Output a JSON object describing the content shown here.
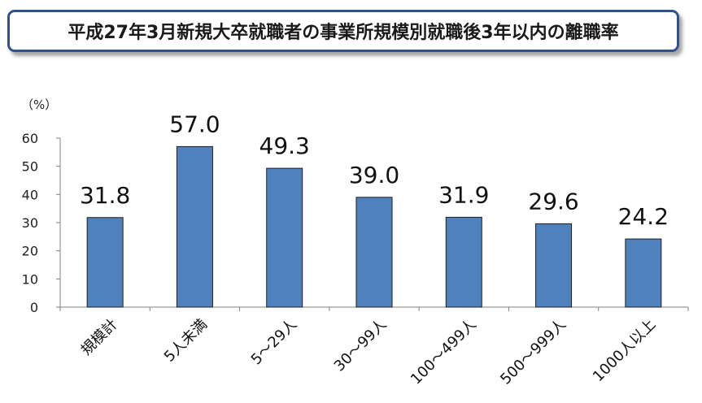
{
  "title": "平成27年3月新規大卒就職者の事業所規模別就職後3年以内の離職率",
  "unit_label": "（%）",
  "colors": {
    "bar": "#4f81bd",
    "bar_border": "#1f1f1f",
    "title_border": "#2f528f"
  },
  "chart_data": {
    "type": "bar",
    "categories": [
      "規模計",
      "5人未満",
      "5～29人",
      "30～99人",
      "100～499人",
      "500～999人",
      "1000人以上"
    ],
    "values": [
      31.8,
      57.0,
      49.3,
      39.0,
      31.9,
      29.6,
      24.2
    ],
    "value_labels": [
      "31.8",
      "57.0",
      "49.3",
      "39.0",
      "31.9",
      "29.6",
      "24.2"
    ],
    "ylim": [
      0,
      60
    ],
    "yticks": [
      0,
      10,
      20,
      30,
      40,
      50,
      60
    ],
    "ylabel": "（%）",
    "xlabel": "",
    "grid": false,
    "legend": "none"
  }
}
